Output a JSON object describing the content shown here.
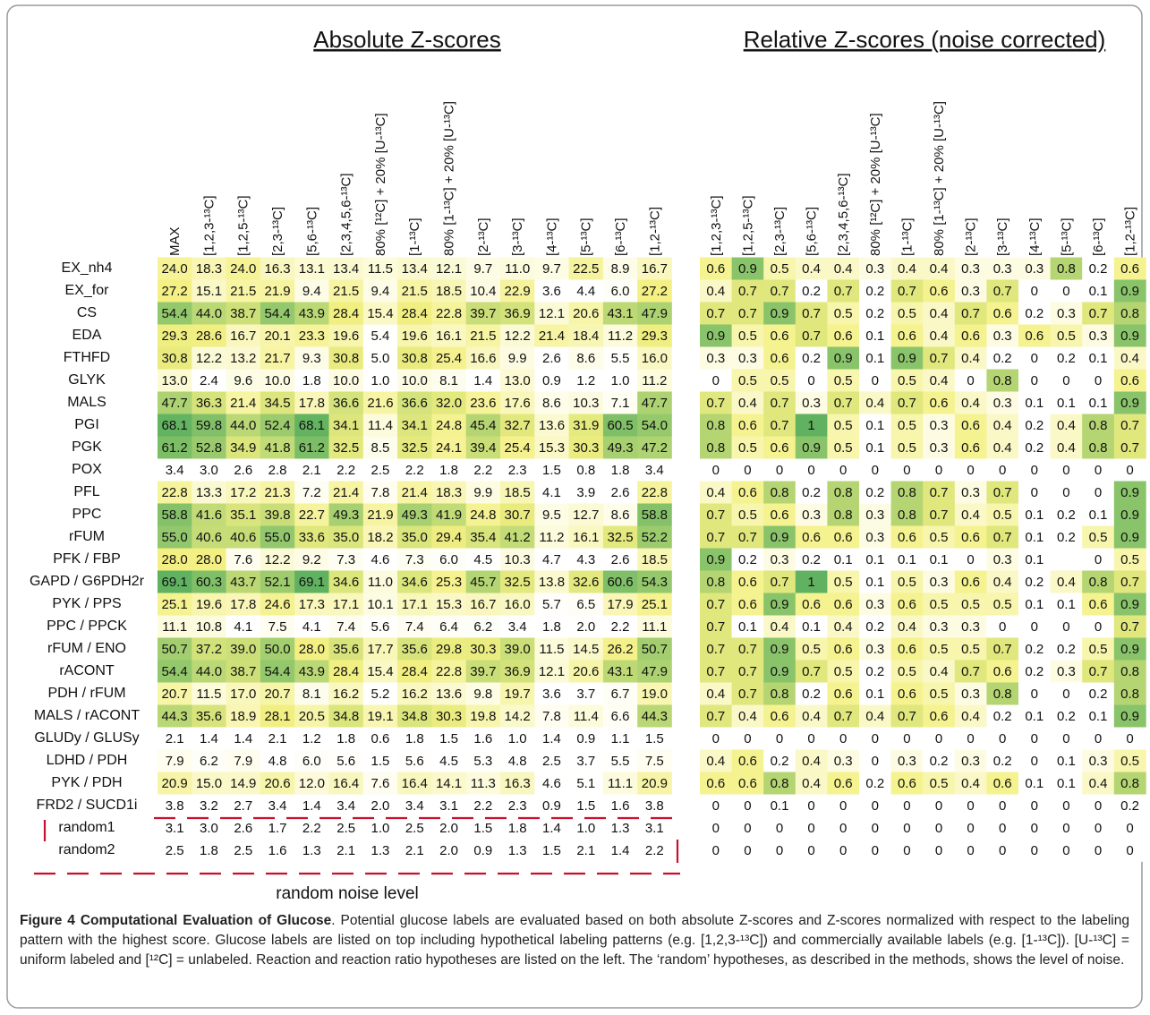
{
  "left": {
    "title": "Absolute Z-scores",
    "columns": [
      "MAX",
      "[1,2,3-¹³C]",
      "[1,2,5-¹³C]",
      "[2,3-¹³C]",
      "[5,6-¹³C]",
      "[2,3,4,5,6-¹³C]",
      "80% [¹²C] + 20% [U-¹³C]",
      "[1-¹³C]",
      "80% [1-¹³C] + 20% [U-¹³C]",
      "[2-¹³C]",
      "[3-¹³C]",
      "[4-¹³C]",
      "[5-¹³C]",
      "[6-¹³C]",
      "[1,2-¹³C]"
    ],
    "rows": [
      [
        "24.0",
        "18.3",
        "24.0",
        "16.3",
        "13.1",
        "13.4",
        "11.5",
        "13.4",
        "12.1",
        "9.7",
        "11.0",
        "9.7",
        "22.5",
        "8.9",
        "16.7"
      ],
      [
        "27.2",
        "15.1",
        "21.5",
        "21.9",
        "9.4",
        "21.5",
        "9.4",
        "21.5",
        "18.5",
        "10.4",
        "22.9",
        "3.6",
        "4.4",
        "6.0",
        "27.2"
      ],
      [
        "54.4",
        "44.0",
        "38.7",
        "54.4",
        "43.9",
        "28.4",
        "15.4",
        "28.4",
        "22.8",
        "39.7",
        "36.9",
        "12.1",
        "20.6",
        "43.1",
        "47.9"
      ],
      [
        "29.3",
        "28.6",
        "16.7",
        "20.1",
        "23.3",
        "19.6",
        "5.4",
        "19.6",
        "16.1",
        "21.5",
        "12.2",
        "21.4",
        "18.4",
        "11.2",
        "29.3"
      ],
      [
        "30.8",
        "12.2",
        "13.2",
        "21.7",
        "9.3",
        "30.8",
        "5.0",
        "30.8",
        "25.4",
        "16.6",
        "9.9",
        "2.6",
        "8.6",
        "5.5",
        "16.0"
      ],
      [
        "13.0",
        "2.4",
        "9.6",
        "10.0",
        "1.8",
        "10.0",
        "1.0",
        "10.0",
        "8.1",
        "1.4",
        "13.0",
        "0.9",
        "1.2",
        "1.0",
        "11.2"
      ],
      [
        "47.7",
        "36.3",
        "21.4",
        "34.5",
        "17.8",
        "36.6",
        "21.6",
        "36.6",
        "32.0",
        "23.6",
        "17.6",
        "8.6",
        "10.3",
        "7.1",
        "47.7"
      ],
      [
        "68.1",
        "59.8",
        "44.0",
        "52.4",
        "68.1",
        "34.1",
        "11.4",
        "34.1",
        "24.8",
        "45.4",
        "32.7",
        "13.6",
        "31.9",
        "60.5",
        "54.0"
      ],
      [
        "61.2",
        "52.8",
        "34.9",
        "41.8",
        "61.2",
        "32.5",
        "8.5",
        "32.5",
        "24.1",
        "39.4",
        "25.4",
        "15.3",
        "30.3",
        "49.3",
        "47.2"
      ],
      [
        "3.4",
        "3.0",
        "2.6",
        "2.8",
        "2.1",
        "2.2",
        "2.5",
        "2.2",
        "1.8",
        "2.2",
        "2.3",
        "1.5",
        "0.8",
        "1.8",
        "3.4"
      ],
      [
        "22.8",
        "13.3",
        "17.2",
        "21.3",
        "7.2",
        "21.4",
        "7.8",
        "21.4",
        "18.3",
        "9.9",
        "18.5",
        "4.1",
        "3.9",
        "2.6",
        "22.8"
      ],
      [
        "58.8",
        "41.6",
        "35.1",
        "39.8",
        "22.7",
        "49.3",
        "21.9",
        "49.3",
        "41.9",
        "24.8",
        "30.7",
        "9.5",
        "12.7",
        "8.6",
        "58.8"
      ],
      [
        "55.0",
        "40.6",
        "40.6",
        "55.0",
        "33.6",
        "35.0",
        "18.2",
        "35.0",
        "29.4",
        "35.4",
        "41.2",
        "11.2",
        "16.1",
        "32.5",
        "52.2"
      ],
      [
        "28.0",
        "28.0",
        "7.6",
        "12.2",
        "9.2",
        "7.3",
        "4.6",
        "7.3",
        "6.0",
        "4.5",
        "10.3",
        "4.7",
        "4.3",
        "2.6",
        "18.5"
      ],
      [
        "69.1",
        "60.3",
        "43.7",
        "52.1",
        "69.1",
        "34.6",
        "11.0",
        "34.6",
        "25.3",
        "45.7",
        "32.5",
        "13.8",
        "32.6",
        "60.6",
        "54.3"
      ],
      [
        "25.1",
        "19.6",
        "17.8",
        "24.6",
        "17.3",
        "17.1",
        "10.1",
        "17.1",
        "15.3",
        "16.7",
        "16.0",
        "5.7",
        "6.5",
        "17.9",
        "25.1"
      ],
      [
        "11.1",
        "10.8",
        "4.1",
        "7.5",
        "4.1",
        "7.4",
        "5.6",
        "7.4",
        "6.4",
        "6.2",
        "3.4",
        "1.8",
        "2.0",
        "2.2",
        "11.1"
      ],
      [
        "50.7",
        "37.2",
        "39.0",
        "50.0",
        "28.0",
        "35.6",
        "17.7",
        "35.6",
        "29.8",
        "30.3",
        "39.0",
        "11.5",
        "14.5",
        "26.2",
        "50.7"
      ],
      [
        "54.4",
        "44.0",
        "38.7",
        "54.4",
        "43.9",
        "28.4",
        "15.4",
        "28.4",
        "22.8",
        "39.7",
        "36.9",
        "12.1",
        "20.6",
        "43.1",
        "47.9"
      ],
      [
        "20.7",
        "11.5",
        "17.0",
        "20.7",
        "8.1",
        "16.2",
        "5.2",
        "16.2",
        "13.6",
        "9.8",
        "19.7",
        "3.6",
        "3.7",
        "6.7",
        "19.0"
      ],
      [
        "44.3",
        "35.6",
        "18.9",
        "28.1",
        "20.5",
        "34.8",
        "19.1",
        "34.8",
        "30.3",
        "19.8",
        "14.2",
        "7.8",
        "11.4",
        "6.6",
        "44.3"
      ],
      [
        "2.1",
        "1.4",
        "1.4",
        "2.1",
        "1.2",
        "1.8",
        "0.6",
        "1.8",
        "1.5",
        "1.6",
        "1.0",
        "1.4",
        "0.9",
        "1.1",
        "1.5"
      ],
      [
        "7.9",
        "6.2",
        "7.9",
        "4.8",
        "6.0",
        "5.6",
        "1.5",
        "5.6",
        "4.5",
        "5.3",
        "4.8",
        "2.5",
        "3.7",
        "5.5",
        "7.5"
      ],
      [
        "20.9",
        "15.0",
        "14.9",
        "20.6",
        "12.0",
        "16.4",
        "7.6",
        "16.4",
        "14.1",
        "11.3",
        "16.3",
        "4.6",
        "5.1",
        "11.1",
        "20.9"
      ],
      [
        "3.8",
        "3.2",
        "2.7",
        "3.4",
        "1.4",
        "3.4",
        "2.0",
        "3.4",
        "3.1",
        "2.2",
        "2.3",
        "0.9",
        "1.5",
        "1.6",
        "3.8"
      ],
      [
        "3.1",
        "3.0",
        "2.6",
        "1.7",
        "2.2",
        "2.5",
        "1.0",
        "2.5",
        "2.0",
        "1.5",
        "1.8",
        "1.4",
        "1.0",
        "1.3",
        "3.1"
      ],
      [
        "2.5",
        "1.8",
        "2.5",
        "1.6",
        "1.3",
        "2.1",
        "1.3",
        "2.1",
        "2.0",
        "0.9",
        "1.3",
        "1.5",
        "2.1",
        "1.4",
        "2.2"
      ]
    ]
  },
  "right": {
    "title": "Relative Z-scores (noise corrected)",
    "columns": [
      "[1,2,3-¹³C]",
      "[1,2,5-¹³C]",
      "[2,3-¹³C]",
      "[5,6-¹³C]",
      "[2,3,4,5,6-¹³C]",
      "80% [¹²C] + 20% [U-¹³C]",
      "[1-¹³C]",
      "80% [1-¹³C] + 20% [U-¹³C]",
      "[2-¹³C]",
      "[3-¹³C]",
      "[4-¹³C]",
      "[5-¹³C]",
      "[6-¹³C]",
      "[1,2-¹³C]"
    ],
    "rows": [
      [
        "0.6",
        "0.9",
        "0.5",
        "0.4",
        "0.4",
        "0.3",
        "0.4",
        "0.4",
        "0.3",
        "0.3",
        "0.3",
        "0.8",
        "0.2",
        "0.6"
      ],
      [
        "0.4",
        "0.7",
        "0.7",
        "0.2",
        "0.7",
        "0.2",
        "0.7",
        "0.6",
        "0.3",
        "0.7",
        "0",
        "0",
        "0.1",
        "0.9"
      ],
      [
        "0.7",
        "0.7",
        "0.9",
        "0.7",
        "0.5",
        "0.2",
        "0.5",
        "0.4",
        "0.7",
        "0.6",
        "0.2",
        "0.3",
        "0.7",
        "0.8"
      ],
      [
        "0.9",
        "0.5",
        "0.6",
        "0.7",
        "0.6",
        "0.1",
        "0.6",
        "0.4",
        "0.6",
        "0.3",
        "0.6",
        "0.5",
        "0.3",
        "0.9"
      ],
      [
        "0.3",
        "0.3",
        "0.6",
        "0.2",
        "0.9",
        "0.1",
        "0.9",
        "0.7",
        "0.4",
        "0.2",
        "0",
        "0.2",
        "0.1",
        "0.4"
      ],
      [
        "0",
        "0.5",
        "0.5",
        "0",
        "0.5",
        "0",
        "0.5",
        "0.4",
        "0",
        "0.8",
        "0",
        "0",
        "0",
        "0.6"
      ],
      [
        "0.7",
        "0.4",
        "0.7",
        "0.3",
        "0.7",
        "0.4",
        "0.7",
        "0.6",
        "0.4",
        "0.3",
        "0.1",
        "0.1",
        "0.1",
        "0.9"
      ],
      [
        "0.8",
        "0.6",
        "0.7",
        "1",
        "0.5",
        "0.1",
        "0.5",
        "0.3",
        "0.6",
        "0.4",
        "0.2",
        "0.4",
        "0.8",
        "0.7"
      ],
      [
        "0.8",
        "0.5",
        "0.6",
        "0.9",
        "0.5",
        "0.1",
        "0.5",
        "0.3",
        "0.6",
        "0.4",
        "0.2",
        "0.4",
        "0.8",
        "0.7"
      ],
      [
        "0",
        "0",
        "0",
        "0",
        "0",
        "0",
        "0",
        "0",
        "0",
        "0",
        "0",
        "0",
        "0",
        "0"
      ],
      [
        "0.4",
        "0.6",
        "0.8",
        "0.2",
        "0.8",
        "0.2",
        "0.8",
        "0.7",
        "0.3",
        "0.7",
        "0",
        "0",
        "0",
        "0.9"
      ],
      [
        "0.7",
        "0.5",
        "0.6",
        "0.3",
        "0.8",
        "0.3",
        "0.8",
        "0.7",
        "0.4",
        "0.5",
        "0.1",
        "0.2",
        "0.1",
        "0.9"
      ],
      [
        "0.7",
        "0.7",
        "0.9",
        "0.6",
        "0.6",
        "0.3",
        "0.6",
        "0.5",
        "0.6",
        "0.7",
        "0.1",
        "0.2",
        "0.5",
        "0.9"
      ],
      [
        "0.9",
        "0.2",
        "0.3",
        "0.2",
        "0.1",
        "0.1",
        "0.1",
        "0.1",
        "0",
        "0.3",
        "0.1",
        null,
        "0",
        "0.5"
      ],
      [
        "0.8",
        "0.6",
        "0.7",
        "1",
        "0.5",
        "0.1",
        "0.5",
        "0.3",
        "0.6",
        "0.4",
        "0.2",
        "0.4",
        "0.8",
        "0.7"
      ],
      [
        "0.7",
        "0.6",
        "0.9",
        "0.6",
        "0.6",
        "0.3",
        "0.6",
        "0.5",
        "0.5",
        "0.5",
        "0.1",
        "0.1",
        "0.6",
        "0.9"
      ],
      [
        "0.7",
        "0.1",
        "0.4",
        "0.1",
        "0.4",
        "0.2",
        "0.4",
        "0.3",
        "0.3",
        "0",
        "0",
        "0",
        "0",
        "0.7"
      ],
      [
        "0.7",
        "0.7",
        "0.9",
        "0.5",
        "0.6",
        "0.3",
        "0.6",
        "0.5",
        "0.5",
        "0.7",
        "0.2",
        "0.2",
        "0.5",
        "0.9"
      ],
      [
        "0.7",
        "0.7",
        "0.9",
        "0.7",
        "0.5",
        "0.2",
        "0.5",
        "0.4",
        "0.7",
        "0.6",
        "0.2",
        "0.3",
        "0.7",
        "0.8"
      ],
      [
        "0.4",
        "0.7",
        "0.8",
        "0.2",
        "0.6",
        "0.1",
        "0.6",
        "0.5",
        "0.3",
        "0.8",
        "0",
        "0",
        "0.2",
        "0.8"
      ],
      [
        "0.7",
        "0.4",
        "0.6",
        "0.4",
        "0.7",
        "0.4",
        "0.7",
        "0.6",
        "0.4",
        "0.2",
        "0.1",
        "0.2",
        "0.1",
        "0.9"
      ],
      [
        "0",
        "0",
        "0",
        "0",
        "0",
        "0",
        "0",
        "0",
        "0",
        "0",
        "0",
        "0",
        "0",
        "0"
      ],
      [
        "0.4",
        "0.6",
        "0.2",
        "0.4",
        "0.3",
        "0",
        "0.3",
        "0.2",
        "0.3",
        "0.2",
        "0",
        "0.1",
        "0.3",
        "0.5"
      ],
      [
        "0.6",
        "0.6",
        "0.8",
        "0.4",
        "0.6",
        "0.2",
        "0.6",
        "0.5",
        "0.4",
        "0.6",
        "0.1",
        "0.1",
        "0.4",
        "0.8"
      ],
      [
        "0",
        "0",
        "0.1",
        "0",
        "0",
        "0",
        "0",
        "0",
        "0",
        "0",
        "0",
        "0",
        "0",
        "0.2"
      ],
      [
        "0",
        "0",
        "0",
        "0",
        "0",
        "0",
        "0",
        "0",
        "0",
        "0",
        "0",
        "0",
        "0",
        "0"
      ],
      [
        "0",
        "0",
        "0",
        "0",
        "0",
        "0",
        "0",
        "0",
        "0",
        "0",
        "0",
        "0",
        "0",
        "0"
      ]
    ]
  },
  "row_labels": [
    "EX_nh4",
    "EX_for",
    "CS",
    "EDA",
    "FTHFD",
    "GLYK",
    "MALS",
    "PGI",
    "PGK",
    "POX",
    "PFL",
    "PPC",
    "rFUM",
    "PFK / FBP",
    "GAPD / G6PDH2r",
    "PYK / PPS",
    "PPC / PPCK",
    "rFUM / ENO",
    "rACONT",
    "PDH / rFUM",
    "MALS / rACONT",
    "GLUDy / GLUSy",
    "LDHD / PDH",
    "PYK / PDH",
    "FRD2 / SUCD1i",
    "random1",
    "random2"
  ],
  "noise_label": "random noise level",
  "caption": {
    "title": "Figure 4 Computational Evaluation of Glucose",
    "text": ". Potential glucose labels are evaluated based on both absolute Z-scores and Z-scores normalized with respect to the labeling pattern with the highest score. Glucose labels are listed on top including hypothetical labeling patterns (e.g. [1,2,3-¹³C]) and commercially available labels (e.g. [1-¹³C]). [U-¹³C] = uniform labeled and [¹²C] = unlabeled. Reaction and reaction ratio hypotheses are listed on the left. The ‘random’ hypotheses, as described in the methods, shows the level of noise."
  }
}
